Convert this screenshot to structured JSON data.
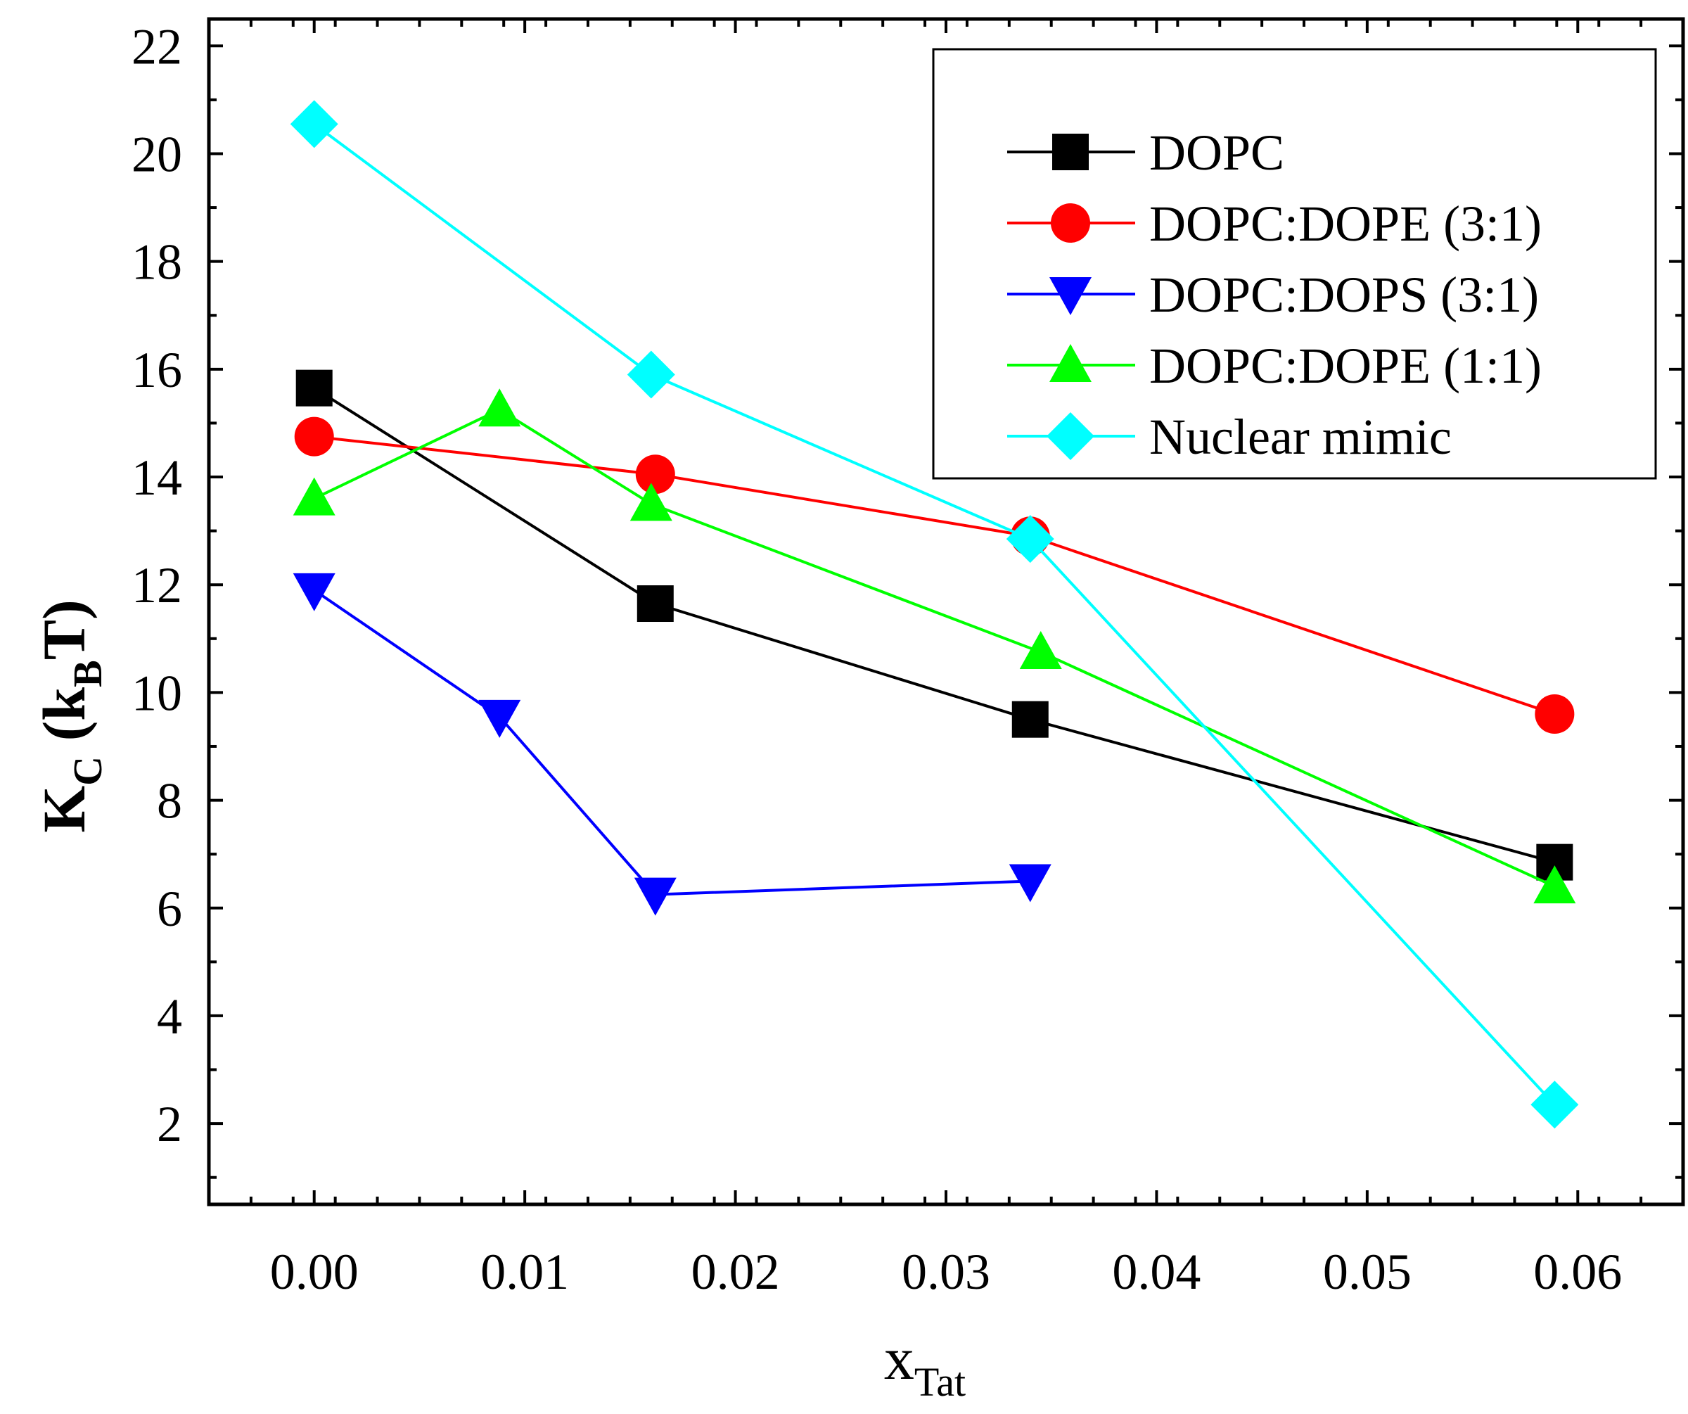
{
  "chart_data": {
    "type": "line",
    "xlabel": "x",
    "xlabel_sub": "Tat",
    "ylabel": "K",
    "ylabel_sub": "C",
    "ylabel_unit_open": " (k",
    "ylabel_unit_sub": "B",
    "ylabel_unit_close": "T)",
    "xlim": [
      -0.005,
      0.065
    ],
    "ylim": [
      0.5,
      22.5
    ],
    "x_ticks": [
      0.0,
      0.01,
      0.02,
      0.03,
      0.04,
      0.05,
      0.06
    ],
    "x_tick_labels": [
      "0.00",
      "0.01",
      "0.02",
      "0.03",
      "0.04",
      "0.05",
      "0.06"
    ],
    "y_ticks": [
      2,
      4,
      6,
      8,
      10,
      12,
      14,
      16,
      18,
      20,
      22
    ],
    "y_tick_labels": [
      "2",
      "4",
      "6",
      "8",
      "10",
      "12",
      "14",
      "16",
      "18",
      "20",
      "22"
    ],
    "grid": false,
    "legend_position": "top-right",
    "series": [
      {
        "name": "DOPC",
        "color": "#000000",
        "marker": "square",
        "x": [
          0.0,
          0.0162,
          0.034,
          0.0589
        ],
        "y": [
          15.65,
          11.65,
          9.5,
          6.85
        ]
      },
      {
        "name": "DOPC:DOPE (3:1)",
        "color": "#ff0000",
        "marker": "circle",
        "x": [
          0.0,
          0.0162,
          0.034,
          0.0589
        ],
        "y": [
          14.75,
          14.05,
          12.9,
          9.6
        ]
      },
      {
        "name": "DOPC:DOPS (3:1)",
        "color": "#0000ff",
        "marker": "triangle-down",
        "x": [
          0.0,
          0.0088,
          0.0162,
          0.034
        ],
        "y": [
          11.9,
          9.55,
          6.25,
          6.5
        ]
      },
      {
        "name": "DOPC:DOPE (1:1)",
        "color": "#00ff00",
        "marker": "triangle-up",
        "x": [
          0.0,
          0.0088,
          0.016,
          0.0345,
          0.0589
        ],
        "y": [
          13.6,
          15.25,
          13.5,
          10.75,
          6.4
        ]
      },
      {
        "name": "Nuclear mimic",
        "color": "#00ffff",
        "marker": "diamond",
        "x": [
          0.0,
          0.016,
          0.034,
          0.0589
        ],
        "y": [
          20.55,
          15.9,
          12.85,
          2.35
        ]
      }
    ]
  }
}
